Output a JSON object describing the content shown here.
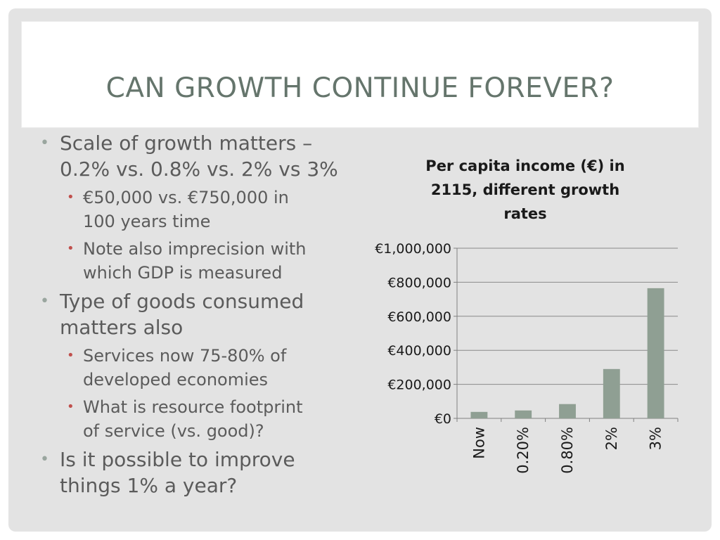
{
  "slide": {
    "title": "CAN GROWTH CONTINUE FOREVER?",
    "bullets": [
      {
        "text": "Scale of growth matters – 0.2% vs. 0.8% vs. 2% vs 3%",
        "lines": [
          "Scale of growth matters –",
          "0.2% vs. 0.8% vs. 2% vs 3%"
        ],
        "level": 1
      },
      {
        "text": "€50,000 vs. €750,000 in 100 years time",
        "lines": [
          "€50,000 vs. €750,000 in",
          "100 years time"
        ],
        "level": 2
      },
      {
        "text": "Note also imprecision with which GDP is measured",
        "lines": [
          "Note also imprecision with",
          "which GDP is measured"
        ],
        "level": 2
      },
      {
        "text": "Type of goods consumed matters also",
        "lines": [
          "Type of goods consumed",
          "matters also"
        ],
        "level": 1
      },
      {
        "text": "Services now 75-80% of developed economies",
        "lines": [
          "Services now 75-80% of",
          "developed economies"
        ],
        "level": 2
      },
      {
        "text": "What is resource footprint of service (vs. good)?",
        "lines": [
          "What is resource footprint",
          "of service (vs. good)?"
        ],
        "level": 2
      },
      {
        "text": "Is it possible to improve things 1% a year?",
        "lines": [
          "Is it possible to improve",
          "things 1% a year?"
        ],
        "level": 1
      }
    ]
  },
  "colors": {
    "title": "#65756c",
    "text": "#5b5b5b",
    "bullet_level1": "#9aa69f",
    "bullet_level2": "#c0504d",
    "bar": "#8f9f93",
    "background": "#e3e3e3"
  },
  "chart_data": {
    "type": "bar",
    "title": "Per capita income (€) in 2115, different growth rates",
    "title_lines": [
      "Per capita income (€) in",
      "2115, different growth",
      "rates"
    ],
    "categories": [
      "Now",
      "0.20%",
      "0.80%",
      "2%",
      "3%"
    ],
    "values": [
      38000,
      46500,
      84000,
      290000,
      765000
    ],
    "ylim": [
      0,
      1000000
    ],
    "yticks": [
      0,
      200000,
      400000,
      600000,
      800000,
      1000000
    ],
    "ytick_labels": [
      "€0",
      "€200,000",
      "€400,000",
      "€600,000",
      "€800,000",
      "€1,000,000"
    ],
    "xlabel": "",
    "ylabel": "",
    "grid": true,
    "legend": false
  }
}
